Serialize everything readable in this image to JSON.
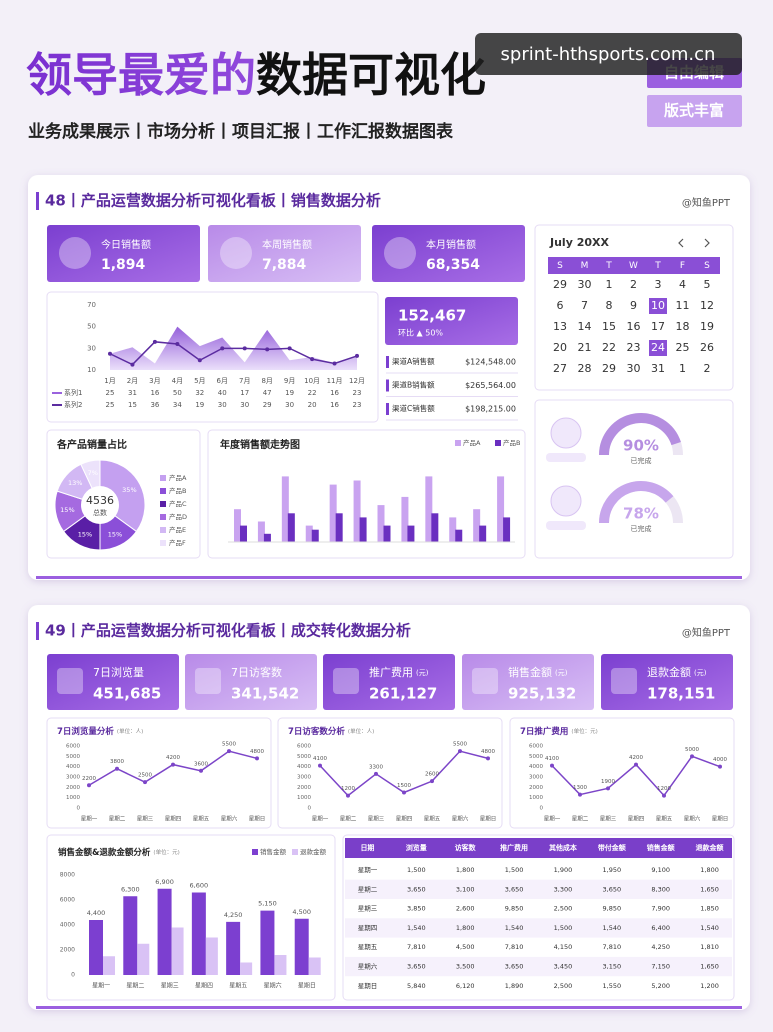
{
  "header": {
    "title_a": "领导最爱的",
    "title_b": "数据可视化",
    "subtitle": "业务成果展示丨市场分析丨项目汇报丨工作汇报数据图表",
    "buttons": [
      "自由编辑",
      "版式丰富"
    ],
    "watermark": "sprint-hthsports.com.cn"
  },
  "dash48": {
    "title": "48丨产品运营数据分析可视化看板丨销售数据分析",
    "brand": "@知鱼PPT",
    "kpis": [
      {
        "label": "今日销售额",
        "value": "1,894"
      },
      {
        "label": "本周销售额",
        "value": "7,884"
      },
      {
        "label": "本月销售额",
        "value": "68,354"
      }
    ],
    "line_chart": {
      "type": "line",
      "categories": [
        "1月",
        "2月",
        "3月",
        "4月",
        "5月",
        "6月",
        "7月",
        "8月",
        "9月",
        "10月",
        "11月",
        "12月"
      ],
      "series": [
        {
          "name": "系列1",
          "color": "#9a62de",
          "values": [
            25,
            31,
            16,
            50,
            32,
            40,
            17,
            47,
            19,
            22,
            16,
            23
          ]
        },
        {
          "name": "系列2",
          "color": "#5b2ca0",
          "values": [
            25,
            15,
            36,
            34,
            19,
            30,
            30,
            29,
            30,
            20,
            16,
            23
          ]
        }
      ],
      "ylim": [
        10,
        70
      ],
      "yticks": [
        10,
        30,
        50,
        70
      ]
    },
    "summary": {
      "value": "152,467",
      "change": "环比 ▲ 50%"
    },
    "channels": [
      {
        "label": "渠道A销售额",
        "value": "$124,548.00"
      },
      {
        "label": "渠道B销售额",
        "value": "$265,564.00"
      },
      {
        "label": "渠道C销售额",
        "value": "$198,215.00"
      }
    ],
    "calendar": {
      "title": "July 20XX",
      "weekdays": [
        "S",
        "M",
        "T",
        "W",
        "T",
        "F",
        "S"
      ],
      "days": [
        [
          29,
          30,
          1,
          2,
          3,
          4,
          5
        ],
        [
          6,
          7,
          8,
          9,
          10,
          11,
          12
        ],
        [
          13,
          14,
          15,
          16,
          17,
          18,
          19
        ],
        [
          20,
          21,
          22,
          23,
          24,
          25,
          26
        ],
        [
          27,
          28,
          29,
          30,
          31,
          1,
          2
        ]
      ],
      "highlight": [
        10,
        24
      ]
    },
    "pie_chart": {
      "type": "pie",
      "title": "各产品销量占比",
      "total": "4536",
      "total_label": "总数",
      "categories": [
        "产品A",
        "产品B",
        "产品C",
        "产品D",
        "产品E",
        "产品F"
      ],
      "values": [
        35,
        15,
        15,
        15,
        13,
        7
      ],
      "value_labels": [
        "35%",
        "15%",
        "15%",
        "15%",
        "13%",
        "7%"
      ],
      "colors": [
        "#c4a0f0",
        "#8b4fd8",
        "#5a1fa6",
        "#a56ae0",
        "#d2b8f4",
        "#ece2fb"
      ]
    },
    "bar_chart": {
      "type": "bar",
      "title": "年度销售额走势图",
      "series": [
        {
          "name": "产品A",
          "color": "#c9a3f0",
          "values": [
            40,
            25,
            80,
            20,
            70,
            75,
            45,
            55,
            80,
            30,
            40,
            80
          ]
        },
        {
          "name": "产品B",
          "color": "#6a2fc0",
          "values": [
            20,
            10,
            35,
            15,
            35,
            30,
            20,
            20,
            35,
            15,
            20,
            30
          ]
        }
      ],
      "ylim": [
        0,
        100
      ]
    },
    "gauges": [
      {
        "value": 90,
        "value_label": "90%",
        "label": "已完成",
        "color": "#b58ee0"
      },
      {
        "value": 78,
        "value_label": "78%",
        "label": "已完成",
        "color": "#c7a6ec"
      }
    ]
  },
  "dash49": {
    "title": "49丨产品运营数据分析可视化看板丨成交转化数据分析",
    "brand": "@知鱼PPT",
    "kpis": [
      {
        "label": "7日浏览量",
        "value": "451,685"
      },
      {
        "label": "7日访客数",
        "value": "341,542"
      },
      {
        "label": "推广费用",
        "unit": "(元)",
        "value": "261,127"
      },
      {
        "label": "销售金额",
        "unit": "(元)",
        "value": "925,132"
      },
      {
        "label": "退款金额",
        "unit": "(元)",
        "value": "178,151"
      }
    ],
    "line_charts": [
      {
        "type": "line",
        "title": "7日浏览量分析",
        "unit": "(单位：人)",
        "categories": [
          "星期一",
          "星期二",
          "星期三",
          "星期四",
          "星期五",
          "星期六",
          "星期日"
        ],
        "values": [
          2200,
          3800,
          2500,
          4200,
          3600,
          5500,
          4800
        ],
        "color": "#7c45c8",
        "ylim": [
          0,
          6000
        ],
        "yticks": [
          0,
          1000,
          2000,
          3000,
          4000,
          5000,
          6000
        ]
      },
      {
        "type": "line",
        "title": "7日访客数分析",
        "unit": "(单位：人)",
        "categories": [
          "星期一",
          "星期二",
          "星期三",
          "星期四",
          "星期五",
          "星期六",
          "星期日"
        ],
        "values": [
          4100,
          1200,
          3300,
          1500,
          2600,
          5500,
          4800
        ],
        "color": "#7c45c8",
        "ylim": [
          0,
          6000
        ],
        "yticks": [
          0,
          1000,
          2000,
          3000,
          4000,
          5000,
          6000
        ]
      },
      {
        "type": "line",
        "title": "7日推广费用",
        "unit": "(单位：元)",
        "categories": [
          "星期一",
          "星期二",
          "星期三",
          "星期四",
          "星期五",
          "星期六",
          "星期日"
        ],
        "values": [
          4100,
          1300,
          1900,
          4200,
          1200,
          5000,
          4000
        ],
        "color": "#7c45c8",
        "ylim": [
          0,
          6000
        ],
        "yticks": [
          0,
          1000,
          2000,
          3000,
          4000,
          5000,
          6000
        ]
      }
    ],
    "bar_chart": {
      "type": "bar",
      "title": "销售金额&退款金额分析",
      "unit": "(单位：元)",
      "categories": [
        "星期一",
        "星期二",
        "星期三",
        "星期四",
        "星期五",
        "星期六",
        "星期日"
      ],
      "series": [
        {
          "name": "销售金额",
          "color": "#7c3fd0",
          "values": [
            4400,
            6300,
            6900,
            6600,
            4250,
            5150,
            4500
          ],
          "value_labels": [
            "4,400",
            "6,300",
            "6,900",
            "6,600",
            "4,250",
            "5,150",
            "4,500"
          ]
        },
        {
          "name": "退款金额",
          "color": "#d9c2f5",
          "values": [
            1500,
            2500,
            3800,
            3000,
            1000,
            1600,
            1400
          ]
        }
      ],
      "ylim": [
        0,
        8000
      ],
      "yticks": [
        0,
        2000,
        4000,
        6000,
        8000
      ]
    },
    "table": {
      "columns": [
        "日期",
        "浏览量",
        "访客数",
        "推广费用",
        "其他成本",
        "带付金额",
        "销售金额",
        "退款金额"
      ],
      "rows": [
        [
          "星期一",
          "1,500",
          "1,800",
          "1,500",
          "1,900",
          "1,950",
          "9,100",
          "1,800"
        ],
        [
          "星期二",
          "3,650",
          "3,100",
          "3,650",
          "3,300",
          "3,650",
          "8,300",
          "1,650"
        ],
        [
          "星期三",
          "3,850",
          "2,600",
          "9,850",
          "2,500",
          "9,850",
          "7,900",
          "1,850"
        ],
        [
          "星期四",
          "1,540",
          "1,800",
          "1,540",
          "1,500",
          "1,540",
          "6,400",
          "1,540"
        ],
        [
          "星期五",
          "7,810",
          "4,500",
          "7,810",
          "4,150",
          "7,810",
          "4,250",
          "1,810"
        ],
        [
          "星期六",
          "3,650",
          "3,500",
          "3,650",
          "3,450",
          "3,150",
          "7,150",
          "1,650"
        ],
        [
          "星期日",
          "5,840",
          "6,120",
          "1,890",
          "2,500",
          "1,550",
          "5,200",
          "1,200"
        ]
      ]
    }
  }
}
